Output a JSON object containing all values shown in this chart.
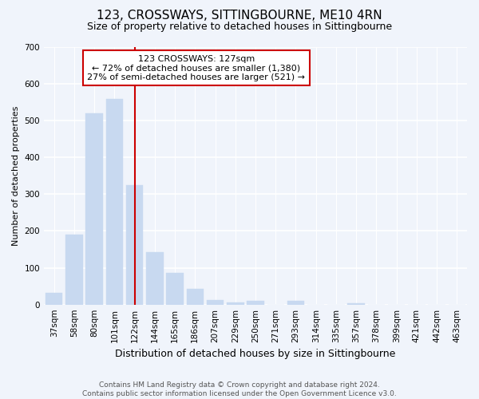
{
  "title": "123, CROSSWAYS, SITTINGBOURNE, ME10 4RN",
  "subtitle": "Size of property relative to detached houses in Sittingbourne",
  "xlabel": "Distribution of detached houses by size in Sittingbourne",
  "ylabel": "Number of detached properties",
  "categories": [
    "37sqm",
    "58sqm",
    "80sqm",
    "101sqm",
    "122sqm",
    "144sqm",
    "165sqm",
    "186sqm",
    "207sqm",
    "229sqm",
    "250sqm",
    "271sqm",
    "293sqm",
    "314sqm",
    "335sqm",
    "357sqm",
    "378sqm",
    "399sqm",
    "421sqm",
    "442sqm",
    "463sqm"
  ],
  "values": [
    32,
    190,
    520,
    560,
    325,
    143,
    85,
    42,
    13,
    5,
    10,
    0,
    10,
    0,
    0,
    3,
    0,
    0,
    0,
    0,
    0
  ],
  "bar_color": "#c8d9f0",
  "bar_edge_color": "#c8d9f0",
  "vline_x": 4,
  "vline_color": "#cc0000",
  "ylim": [
    0,
    700
  ],
  "yticks": [
    0,
    100,
    200,
    300,
    400,
    500,
    600,
    700
  ],
  "annotation_line1": "123 CROSSWAYS: 127sqm",
  "annotation_line2": "← 72% of detached houses are smaller (1,380)",
  "annotation_line3": "27% of semi-detached houses are larger (521) →",
  "annotation_box_color": "#ffffff",
  "annotation_box_edge": "#cc0000",
  "footer": "Contains HM Land Registry data © Crown copyright and database right 2024.\nContains public sector information licensed under the Open Government Licence v3.0.",
  "bg_color": "#f0f4fb",
  "plot_bg_color": "#f0f4fb",
  "grid_color": "#ffffff",
  "title_fontsize": 11,
  "subtitle_fontsize": 9,
  "xlabel_fontsize": 9,
  "ylabel_fontsize": 8,
  "tick_fontsize": 7.5,
  "footer_fontsize": 6.5
}
